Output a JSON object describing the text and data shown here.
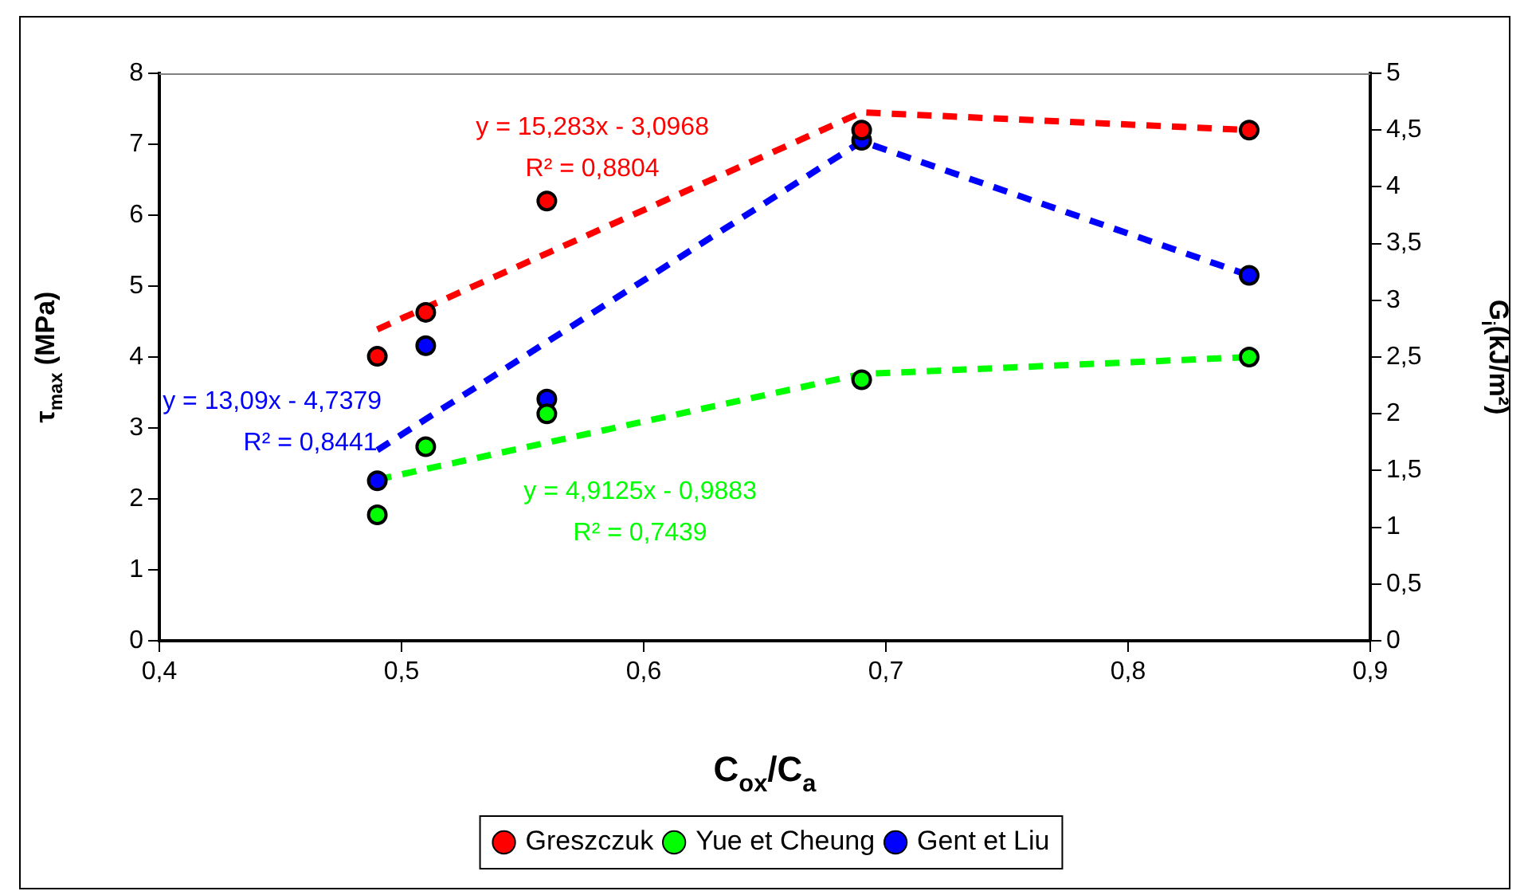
{
  "chart_data": {
    "type": "scatter",
    "xlabel": "C$_{ox}$/C$_{a}$",
    "ylabel": "τ$_{max}$ (MPa)",
    "y2label": "G$_{i}$(kJ/m²)",
    "xlim": [
      0.4,
      0.9
    ],
    "xticks": [
      {
        "value": 0.4,
        "label": "0,4"
      },
      {
        "value": 0.5,
        "label": "0,5"
      },
      {
        "value": 0.6,
        "label": "0,6"
      },
      {
        "value": 0.7,
        "label": "0,7"
      },
      {
        "value": 0.8,
        "label": "0,8"
      },
      {
        "value": 0.9,
        "label": "0,9"
      }
    ],
    "ylim": [
      0,
      8
    ],
    "yticks": [
      0,
      1,
      2,
      3,
      4,
      5,
      6,
      7,
      8
    ],
    "y2lim": [
      0,
      5
    ],
    "y2ticks": [
      0,
      {
        "value": 0.5,
        "label": "0,5"
      },
      1,
      {
        "value": 1.5,
        "label": "1,5"
      },
      2,
      {
        "value": 2.5,
        "label": "2,5"
      },
      3,
      {
        "value": 3.5,
        "label": "3,5"
      },
      4,
      {
        "value": 4.5,
        "label": "4,5"
      },
      5
    ],
    "x": [
      0.49,
      0.51,
      0.56,
      0.69,
      0.85
    ],
    "series": [
      {
        "name": "Greszczuk",
        "color": "#ff0000",
        "values": [
          4.01,
          4.63,
          6.2,
          7.2,
          7.2
        ]
      },
      {
        "name": "Yue et Cheung",
        "color": "#00ff00",
        "axis": "y2",
        "values": [
          1.11,
          1.71,
          2.0,
          2.3,
          2.5
        ]
      },
      {
        "name": "Gent et Liu",
        "color": "#0000ff",
        "axis": "y2",
        "values": [
          1.41,
          2.6,
          2.13,
          4.41,
          3.22
        ]
      },
      {
        "type": "line",
        "marker": "none",
        "color": "#ff0000",
        "x": [
          0.49,
          0.69,
          0.85
        ],
        "values": [
          4.39,
          7.45,
          7.2
        ]
      },
      {
        "type": "line",
        "marker": "none",
        "color": "#0000ff",
        "axis": "y2",
        "x": [
          0.49,
          0.69,
          0.85
        ],
        "values": [
          1.68,
          4.4,
          3.22
        ]
      },
      {
        "type": "line",
        "marker": "none",
        "color": "#00ff00",
        "axis": "y2",
        "x": [
          0.49,
          0.69,
          0.85
        ],
        "values": [
          1.42,
          2.35,
          2.5
        ]
      }
    ],
    "annotations": [
      "y = 15,283x - 3,0968",
      "R² = 0,8804",
      "y = 13,09x - 4,7379",
      "R² = 0,8441",
      "y = 4,9125x - 0,9883",
      "R² = 0,7439"
    ],
    "marker": "circle",
    "line_style": "dashed",
    "legend": "bottom",
    "grid": false
  }
}
